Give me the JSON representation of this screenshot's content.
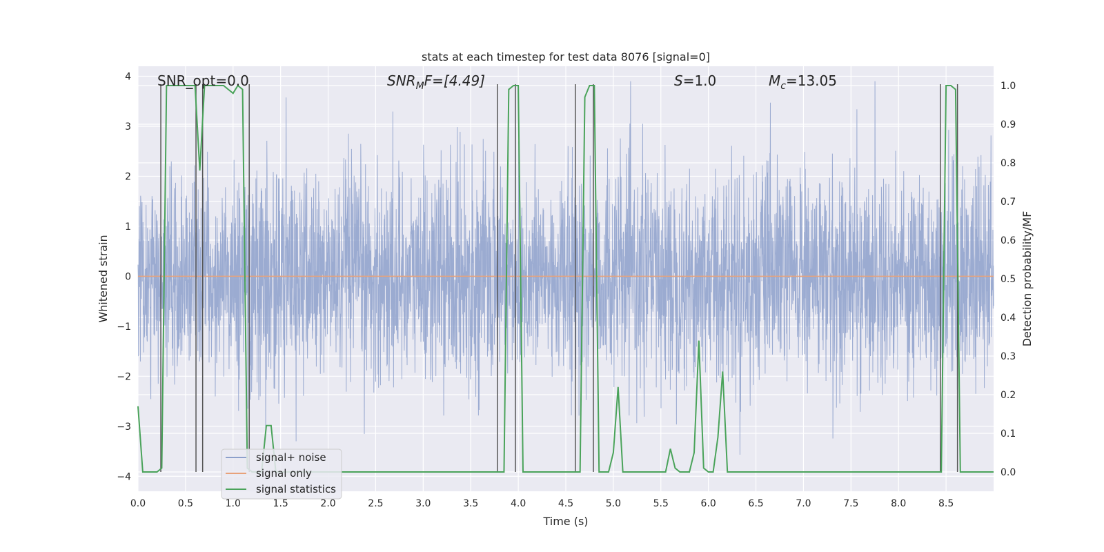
{
  "chart_data": {
    "type": "line",
    "title": "stats at each timestep for test data 8076 [signal=0]",
    "xlabel": "Time (s)",
    "ylabel_left": "Whitened strain",
    "ylabel_right": "Detection probability/MF",
    "xlim": [
      0.0,
      9.0
    ],
    "ylim_left": [
      -4.3,
      4.2
    ],
    "ylim_right": [
      -0.05,
      1.05
    ],
    "grid": true,
    "x_ticks": [
      "0.0",
      "0.5",
      "1.0",
      "1.5",
      "2.0",
      "2.5",
      "3.0",
      "3.5",
      "4.0",
      "4.5",
      "5.0",
      "5.5",
      "6.0",
      "6.5",
      "7.0",
      "7.5",
      "8.0",
      "8.5"
    ],
    "y_left_ticks": [
      "−4",
      "−3",
      "−2",
      "−1",
      "0",
      "1",
      "2",
      "3",
      "4"
    ],
    "y_right_ticks": [
      "0.0",
      "0.1",
      "0.2",
      "0.3",
      "0.4",
      "0.5",
      "0.6",
      "0.7",
      "0.8",
      "0.9",
      "1.0"
    ],
    "annotations": {
      "snr_opt": "SNR_opt=0.0",
      "snr_mf_name": "SNR",
      "snr_mf_sub": "M",
      "snr_mf_tail": "F=[4.49]",
      "s_name": "S",
      "s_value": "=1.0",
      "mc_name": "M",
      "mc_sub": "c",
      "mc_value": "=13.05"
    },
    "legend": {
      "position": "lower-left",
      "entries": [
        {
          "label": "signal+ noise",
          "color": "#8da0cb"
        },
        {
          "label": "signal only",
          "color": "#e8a27a"
        },
        {
          "label": "signal statistics",
          "color": "#4aa35a"
        }
      ]
    },
    "series": [
      {
        "name": "signal+ noise",
        "color": "#8da0cb",
        "description": "dense whitened strain noise, roughly |y|<2 with spikes to about ±3.6",
        "seed": 8076,
        "n_points": 3600,
        "sigma": 1.05,
        "clip": [
          -3.9,
          3.9
        ]
      },
      {
        "name": "signal only",
        "color": "#e8a27a",
        "x": [
          0.0,
          9.0
        ],
        "y": [
          0.0,
          0.0
        ]
      },
      {
        "name": "signal statistics",
        "color": "#4aa35a",
        "x": [
          0.0,
          0.05,
          0.1,
          0.15,
          0.2,
          0.25,
          0.3,
          0.35,
          0.4,
          0.45,
          0.5,
          0.55,
          0.6,
          0.65,
          0.7,
          0.75,
          0.8,
          0.85,
          0.9,
          0.95,
          1.0,
          1.05,
          1.1,
          1.15,
          1.2,
          1.25,
          1.3,
          1.35,
          1.4,
          1.45,
          1.5,
          1.55,
          1.6,
          3.8,
          3.85,
          3.9,
          3.95,
          4.0,
          4.05,
          4.1,
          4.15,
          4.2,
          4.6,
          4.65,
          4.7,
          4.75,
          4.8,
          4.85,
          4.9,
          4.95,
          5.0,
          5.05,
          5.1,
          5.15,
          5.2,
          5.25,
          5.5,
          5.55,
          5.6,
          5.65,
          5.7,
          5.75,
          5.8,
          5.85,
          5.9,
          5.95,
          6.0,
          6.05,
          6.1,
          6.15,
          6.2,
          6.25,
          6.3,
          6.35,
          6.4,
          6.45,
          8.45,
          8.5,
          8.55,
          8.6,
          8.65,
          8.7,
          8.75,
          8.8,
          8.85,
          8.9,
          8.95,
          9.0
        ],
        "y": [
          0.17,
          0.0,
          0.0,
          0.0,
          0.0,
          0.01,
          1.0,
          1.0,
          1.0,
          1.0,
          1.0,
          1.0,
          1.0,
          0.78,
          1.0,
          1.0,
          1.0,
          1.0,
          1.0,
          0.99,
          0.98,
          1.0,
          0.99,
          0.01,
          0.0,
          0.0,
          0.0,
          0.12,
          0.12,
          0.0,
          0.0,
          0.0,
          0.0,
          0.0,
          0.0,
          0.99,
          1.0,
          1.0,
          0.0,
          0.0,
          0.0,
          0.0,
          0.0,
          0.0,
          0.97,
          1.0,
          1.0,
          0.0,
          0.0,
          0.0,
          0.05,
          0.22,
          0.0,
          0.0,
          0.0,
          0.0,
          0.0,
          0.0,
          0.06,
          0.01,
          0.0,
          0.0,
          0.0,
          0.05,
          0.34,
          0.01,
          0.0,
          0.0,
          0.09,
          0.26,
          0.0,
          0.0,
          0.0,
          0.0,
          0.0,
          0.0,
          0.0,
          1.0,
          1.0,
          0.99,
          0.0,
          0.0,
          0.0,
          0.0,
          0.0,
          0.0,
          0.0,
          0.0
        ]
      }
    ],
    "vertical_markers_x": [
      0.24,
      0.61,
      0.68,
      1.17,
      3.78,
      3.97,
      4.6,
      4.79,
      8.44,
      8.62
    ]
  }
}
